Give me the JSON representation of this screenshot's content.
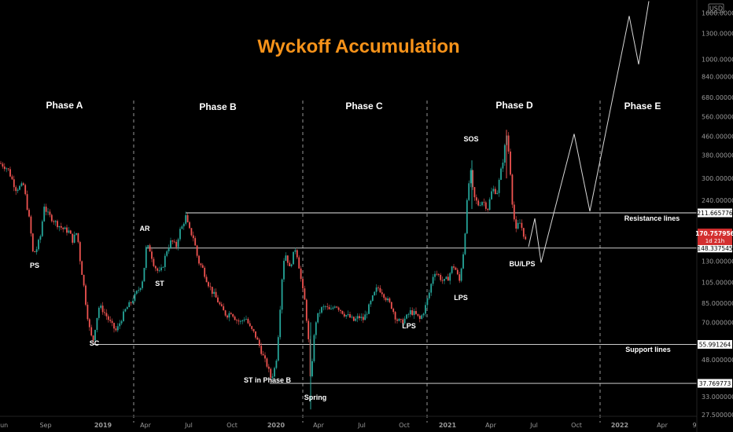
{
  "chart_data": {
    "type": "candlestick",
    "title": "Wyckoff Accumulation",
    "title_color": "#f7931a",
    "currency": "USD",
    "y_scale": "log",
    "ylim": [
      25,
      1750
    ],
    "y_ticks": [
      {
        "v": 1600,
        "label": "1600.000000"
      },
      {
        "v": 1300,
        "label": "1300.000000"
      },
      {
        "v": 1000,
        "label": "1000.000000"
      },
      {
        "v": 840,
        "label": "840.000000"
      },
      {
        "v": 680,
        "label": "680.000000"
      },
      {
        "v": 560,
        "label": "560.000000"
      },
      {
        "v": 460,
        "label": "460.000000"
      },
      {
        "v": 380,
        "label": "380.000000"
      },
      {
        "v": 300,
        "label": "300.000000"
      },
      {
        "v": 240,
        "label": "240.000000"
      },
      {
        "v": 130,
        "label": "130.000000"
      },
      {
        "v": 105,
        "label": "105.000000"
      },
      {
        "v": 85,
        "label": "85.000000"
      },
      {
        "v": 70,
        "label": "70.000000"
      },
      {
        "v": 48,
        "label": "48.000000"
      },
      {
        "v": 33,
        "label": "33.000000"
      },
      {
        "v": 27.5,
        "label": "27.500000"
      }
    ],
    "x_ticks": [
      "Jun",
      "Sep",
      "2019",
      "Apr",
      "Jul",
      "Oct",
      "2020",
      "Apr",
      "Jul",
      "Oct",
      "2021",
      "Apr",
      "Jul",
      "Oct",
      "2022",
      "Apr",
      "9"
    ],
    "x_ticks_bold": [
      "2019",
      "2020",
      "2021",
      "2022"
    ],
    "phases": [
      "Phase A",
      "Phase B",
      "Phase C",
      "Phase D",
      "Phase E"
    ],
    "events": [
      "PS",
      "SC",
      "AR",
      "ST",
      "ST in Phase B",
      "Spring",
      "LPS",
      "LPS",
      "SOS",
      "BU/LPS"
    ],
    "levels": [
      {
        "value": 211.665776,
        "label": "211.665776"
      },
      {
        "value": 148.337545,
        "label": "148.337545"
      },
      {
        "value": 55.991264,
        "label": "55.991264"
      },
      {
        "value": 37.769773,
        "label": "37.769773"
      }
    ],
    "zone_labels": [
      "Resistance lines",
      "Support lines"
    ],
    "last_price": {
      "value": 170.757956,
      "label": "170.757956",
      "countdown": "1d 21h"
    },
    "price_path": [
      [
        0,
        350
      ],
      [
        10,
        330
      ],
      [
        20,
        270
      ],
      [
        30,
        280
      ],
      [
        38,
        190
      ],
      [
        42,
        140
      ],
      [
        46,
        145
      ],
      [
        52,
        170
      ],
      [
        56,
        230
      ],
      [
        60,
        210
      ],
      [
        66,
        200
      ],
      [
        72,
        190
      ],
      [
        80,
        180
      ],
      [
        88,
        175
      ],
      [
        92,
        160
      ],
      [
        98,
        175
      ],
      [
        102,
        130
      ],
      [
        106,
        105
      ],
      [
        110,
        80
      ],
      [
        114,
        65
      ],
      [
        118,
        57
      ],
      [
        122,
        70
      ],
      [
        126,
        82
      ],
      [
        130,
        80
      ],
      [
        136,
        74
      ],
      [
        142,
        68
      ],
      [
        148,
        64
      ],
      [
        154,
        72
      ],
      [
        160,
        80
      ],
      [
        166,
        85
      ],
      [
        172,
        92
      ],
      [
        178,
        100
      ],
      [
        182,
        110
      ],
      [
        186,
        150
      ],
      [
        190,
        148
      ],
      [
        196,
        125
      ],
      [
        202,
        115
      ],
      [
        206,
        120
      ],
      [
        212,
        145
      ],
      [
        218,
        160
      ],
      [
        224,
        150
      ],
      [
        228,
        175
      ],
      [
        232,
        185
      ],
      [
        236,
        205
      ],
      [
        240,
        180
      ],
      [
        246,
        165
      ],
      [
        252,
        130
      ],
      [
        258,
        120
      ],
      [
        264,
        105
      ],
      [
        270,
        95
      ],
      [
        276,
        88
      ],
      [
        282,
        80
      ],
      [
        288,
        75
      ],
      [
        294,
        78
      ],
      [
        300,
        72
      ],
      [
        306,
        70
      ],
      [
        312,
        74
      ],
      [
        318,
        66
      ],
      [
        324,
        62
      ],
      [
        330,
        55
      ],
      [
        336,
        48
      ],
      [
        340,
        45
      ],
      [
        344,
        40
      ],
      [
        348,
        42
      ],
      [
        352,
        50
      ],
      [
        356,
        80
      ],
      [
        360,
        130
      ],
      [
        364,
        140
      ],
      [
        368,
        120
      ],
      [
        372,
        135
      ],
      [
        376,
        150
      ],
      [
        380,
        125
      ],
      [
        384,
        100
      ],
      [
        388,
        85
      ],
      [
        392,
        60
      ],
      [
        395,
        37
      ],
      [
        398,
        55
      ],
      [
        402,
        72
      ],
      [
        408,
        80
      ],
      [
        414,
        82
      ],
      [
        420,
        78
      ],
      [
        426,
        84
      ],
      [
        432,
        80
      ],
      [
        438,
        76
      ],
      [
        444,
        74
      ],
      [
        450,
        71
      ],
      [
        456,
        74
      ],
      [
        462,
        72
      ],
      [
        468,
        80
      ],
      [
        474,
        90
      ],
      [
        480,
        100
      ],
      [
        486,
        95
      ],
      [
        492,
        88
      ],
      [
        498,
        82
      ],
      [
        504,
        72
      ],
      [
        510,
        70
      ],
      [
        516,
        73
      ],
      [
        522,
        78
      ],
      [
        528,
        76
      ],
      [
        534,
        72
      ],
      [
        540,
        80
      ],
      [
        546,
        95
      ],
      [
        552,
        118
      ],
      [
        558,
        112
      ],
      [
        564,
        105
      ],
      [
        570,
        110
      ],
      [
        576,
        125
      ],
      [
        580,
        118
      ],
      [
        584,
        105
      ],
      [
        590,
        150
      ],
      [
        594,
        240
      ],
      [
        598,
        330
      ],
      [
        602,
        250
      ],
      [
        608,
        230
      ],
      [
        614,
        240
      ],
      [
        620,
        220
      ],
      [
        626,
        270
      ],
      [
        632,
        260
      ],
      [
        636,
        310
      ],
      [
        640,
        370
      ],
      [
        644,
        470
      ],
      [
        648,
        360
      ],
      [
        652,
        220
      ],
      [
        656,
        175
      ],
      [
        660,
        195
      ],
      [
        664,
        180
      ],
      [
        668,
        160
      ],
      [
        672,
        150
      ]
    ],
    "projection_path": [
      [
        672,
        150
      ],
      [
        680,
        200
      ],
      [
        688,
        128
      ],
      [
        730,
        470
      ],
      [
        750,
        215
      ],
      [
        800,
        1550
      ],
      [
        812,
        950
      ],
      [
        825,
        1800
      ]
    ]
  },
  "vlines_x": [
    170,
    385,
    543,
    763
  ]
}
